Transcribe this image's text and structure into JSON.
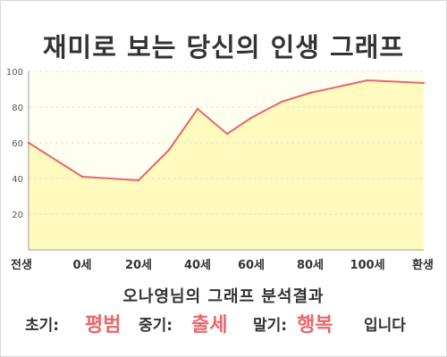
{
  "title": "재미로 보는 당신의 인생 그래프",
  "summary": "오나영님의 그래프 분석결과",
  "result": {
    "early_label": "초기:",
    "early_value": "평범",
    "mid_label": "중기:",
    "mid_value": "출세",
    "late_label": "말기:",
    "late_value": "행복",
    "ending": "입니다"
  },
  "colors": {
    "line": "#e8676a",
    "area": "#fffbbf",
    "plot_bg": "#fffef0",
    "highlight": "#e8676a"
  },
  "chart_data": {
    "type": "area",
    "title": "",
    "xlabel": "",
    "ylabel": "",
    "x_ticks": [
      "전생",
      "0세",
      "20세",
      "40세",
      "60세",
      "80세",
      "100세",
      "환생"
    ],
    "y_ticks": [
      20,
      40,
      60,
      80,
      100
    ],
    "ylim": [
      0,
      100
    ],
    "grid": true,
    "series": [
      {
        "points": [
          {
            "x": "전생",
            "y": 60
          },
          {
            "x": "0세",
            "y": 41
          },
          {
            "x": "20세",
            "y": 39
          },
          {
            "x": "30세",
            "y": 56
          },
          {
            "x": "40세",
            "y": 79
          },
          {
            "x": "50세",
            "y": 65
          },
          {
            "x": "60세",
            "y": 74
          },
          {
            "x": "70세",
            "y": 83
          },
          {
            "x": "80세",
            "y": 88
          },
          {
            "x": "100세",
            "y": 95
          },
          {
            "x": "환생",
            "y": 93.5
          }
        ]
      }
    ]
  }
}
